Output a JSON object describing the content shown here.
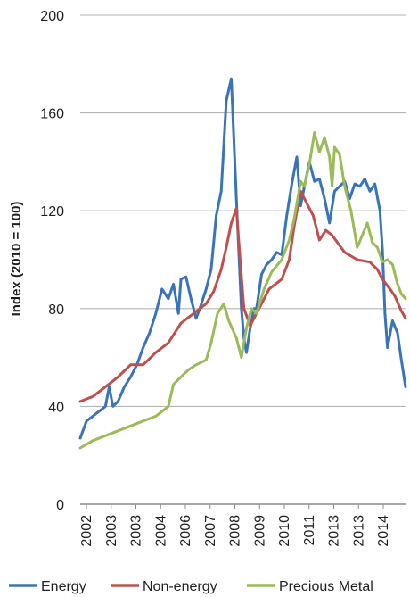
{
  "chart_data": {
    "type": "line",
    "title": "",
    "xlabel": "",
    "ylabel": "Index (2010 = 100)",
    "ylim": [
      0,
      200
    ],
    "yticks": [
      0,
      40,
      80,
      120,
      160,
      200
    ],
    "xlim": [
      2002.0,
      2014.917
    ],
    "x_tick_labels": [
      "2002",
      "2003",
      "2003",
      "2004",
      "2006",
      "2007",
      "2008",
      "2009",
      "2010",
      "2011",
      "2013",
      "2013",
      "2014"
    ],
    "grid": "horizontal",
    "legend": "bottom",
    "series": [
      {
        "name": "Energy",
        "color": "#3a74b8",
        "x": [
          2002.0,
          2002.25,
          2002.5,
          2002.75,
          2003.0,
          2003.15,
          2003.3,
          2003.5,
          2003.75,
          2004.0,
          2004.25,
          2004.5,
          2004.75,
          2005.0,
          2005.25,
          2005.5,
          2005.7,
          2005.9,
          2006.0,
          2006.2,
          2006.4,
          2006.6,
          2006.75,
          2007.0,
          2007.2,
          2007.4,
          2007.6,
          2007.8,
          2008.0,
          2008.2,
          2008.4,
          2008.5,
          2008.6,
          2008.75,
          2008.9,
          2009.0,
          2009.2,
          2009.4,
          2009.6,
          2009.8,
          2010.0,
          2010.2,
          2010.4,
          2010.6,
          2010.75,
          2010.9,
          2011.1,
          2011.3,
          2011.5,
          2011.7,
          2011.9,
          2012.1,
          2012.3,
          2012.5,
          2012.7,
          2012.9,
          2013.1,
          2013.3,
          2013.5,
          2013.7,
          2013.9,
          2014.0,
          2014.1,
          2014.2,
          2014.4,
          2014.6,
          2014.75,
          2014.917
        ],
        "values": [
          27,
          34,
          36,
          38,
          40,
          48,
          40,
          42,
          48,
          52,
          57,
          64,
          70,
          78,
          88,
          84,
          90,
          78,
          92,
          93,
          84,
          76,
          80,
          88,
          96,
          118,
          128,
          165,
          174,
          125,
          80,
          68,
          62,
          72,
          80,
          80,
          94,
          98,
          100,
          103,
          102,
          118,
          131,
          142,
          122,
          130,
          140,
          132,
          133,
          125,
          115,
          128,
          130,
          132,
          125,
          131,
          130,
          133,
          128,
          131,
          120,
          104,
          78,
          64,
          75,
          70,
          59,
          48
        ]
      },
      {
        "name": "Non-energy",
        "color": "#c0504d",
        "x": [
          2002.0,
          2002.5,
          2003.0,
          2003.5,
          2004.0,
          2004.5,
          2005.0,
          2005.5,
          2006.0,
          2006.5,
          2007.0,
          2007.3,
          2007.6,
          2007.8,
          2008.0,
          2008.2,
          2008.35,
          2008.5,
          2008.75,
          2009.0,
          2009.5,
          2010.0,
          2010.3,
          2010.5,
          2010.75,
          2011.0,
          2011.25,
          2011.5,
          2011.75,
          2012.0,
          2012.5,
          2013.0,
          2013.5,
          2013.8,
          2014.0,
          2014.3,
          2014.5,
          2014.75,
          2014.917
        ],
        "values": [
          42,
          44,
          48,
          52,
          57,
          57,
          62,
          66,
          74,
          78,
          82,
          87,
          96,
          105,
          115,
          121,
          100,
          80,
          73,
          78,
          88,
          92,
          100,
          114,
          128,
          123,
          118,
          108,
          112,
          110,
          103,
          100,
          99,
          96,
          92,
          88,
          85,
          79,
          76
        ]
      },
      {
        "name": "Precious Metal",
        "color": "#9bbb59",
        "x": [
          2002.0,
          2002.5,
          2003.0,
          2003.5,
          2004.0,
          2004.5,
          2005.0,
          2005.5,
          2005.7,
          2006.0,
          2006.3,
          2006.6,
          2007.0,
          2007.2,
          2007.45,
          2007.7,
          2007.9,
          2008.2,
          2008.4,
          2008.6,
          2008.8,
          2009.0,
          2009.3,
          2009.6,
          2010.0,
          2010.3,
          2010.5,
          2010.75,
          2010.9,
          2011.1,
          2011.3,
          2011.5,
          2011.7,
          2011.9,
          2012.0,
          2012.1,
          2012.3,
          2012.5,
          2012.75,
          2013.0,
          2013.2,
          2013.4,
          2013.6,
          2013.8,
          2014.0,
          2014.2,
          2014.4,
          2014.6,
          2014.75,
          2014.917
        ],
        "values": [
          23,
          26,
          28,
          30,
          32,
          34,
          36,
          40,
          49,
          52,
          55,
          57,
          59,
          66,
          78,
          82,
          75,
          68,
          60,
          72,
          80,
          78,
          88,
          95,
          100,
          108,
          117,
          132,
          130,
          139,
          152,
          144,
          150,
          142,
          130,
          146,
          143,
          130,
          120,
          105,
          110,
          115,
          107,
          105,
          99,
          100,
          98,
          90,
          86,
          84
        ]
      }
    ]
  }
}
